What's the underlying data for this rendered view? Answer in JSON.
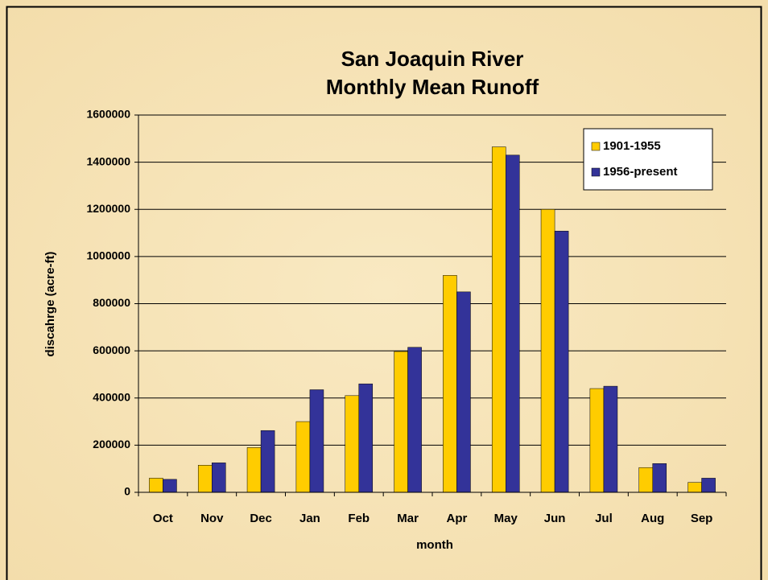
{
  "chart_data": {
    "type": "bar",
    "title": [
      "San Joaquin River",
      "Monthly Mean Runoff"
    ],
    "x_label": "month",
    "y_label": "discahrge (acre-ft)",
    "categories": [
      "Oct",
      "Nov",
      "Dec",
      "Jan",
      "Feb",
      "Mar",
      "Apr",
      "May",
      "Jun",
      "Jul",
      "Aug",
      "Sep"
    ],
    "series": [
      {
        "name": "1901-1955",
        "color": "#ffcc00",
        "values": [
          60000,
          115000,
          190000,
          300000,
          410000,
          597000,
          920000,
          1465000,
          1200000,
          440000,
          105000,
          42000
        ]
      },
      {
        "name": "1956-present",
        "color": "#333399",
        "values": [
          55000,
          125000,
          262000,
          435000,
          460000,
          615000,
          850000,
          1430000,
          1108000,
          450000,
          122000,
          60000
        ]
      }
    ],
    "ylim": [
      0,
      1600000
    ],
    "yticks": [
      0,
      200000,
      400000,
      600000,
      800000,
      1000000,
      1200000,
      1400000,
      1600000
    ],
    "grid": true,
    "legend": "upper right"
  }
}
